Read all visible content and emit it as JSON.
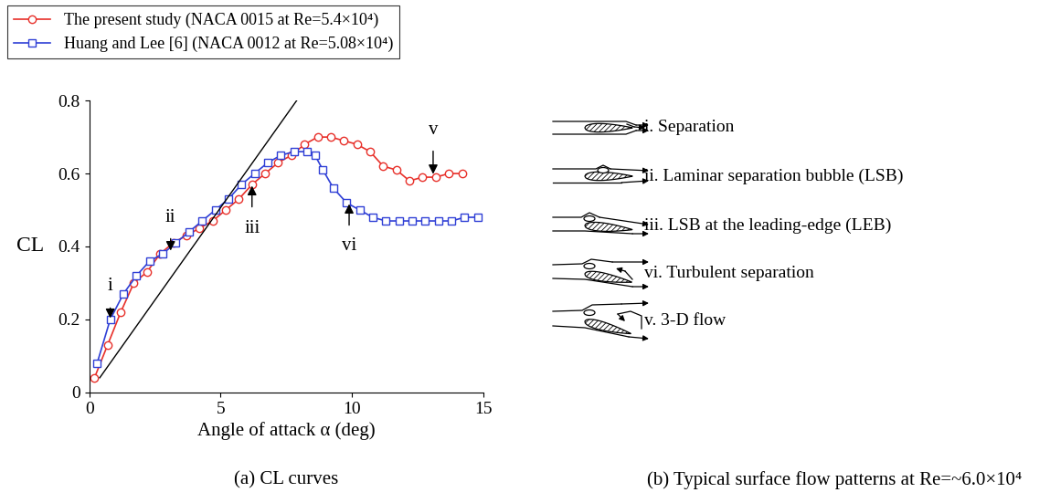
{
  "chart_data": {
    "type": "line",
    "xlabel": "Angle of attack α (deg)",
    "ylabel": "CL",
    "caption": "(a) CL curves",
    "xlim": [
      0,
      15
    ],
    "xticks": [
      0,
      5,
      10,
      15
    ],
    "ylim": [
      0,
      0.8
    ],
    "yticks": [
      0,
      0.2,
      0.4,
      0.6,
      0.8
    ],
    "grid": false,
    "legend": "upper left",
    "series": [
      {
        "name": "The present study (NACA 0015 at Re=5.4×10⁴)",
        "color": "#e8302a",
        "marker": "circle",
        "line_style": "solid",
        "x": [
          0.2,
          0.7,
          1.2,
          1.7,
          2.2,
          2.7,
          3.2,
          3.7,
          4.2,
          4.7,
          5.2,
          5.7,
          6.2,
          6.7,
          7.2,
          7.7,
          8.2,
          8.7,
          9.2,
          9.7,
          10.2,
          10.7,
          11.2,
          11.7,
          12.2,
          12.7,
          13.2,
          13.7,
          14.2
        ],
        "values": [
          0.04,
          0.13,
          0.22,
          0.3,
          0.33,
          0.38,
          0.41,
          0.43,
          0.45,
          0.47,
          0.5,
          0.53,
          0.57,
          0.6,
          0.63,
          0.65,
          0.68,
          0.7,
          0.7,
          0.69,
          0.68,
          0.66,
          0.62,
          0.61,
          0.58,
          0.59,
          0.59,
          0.6,
          0.6
        ]
      },
      {
        "name": "Huang and Lee [6] (NACA 0012 at Re=5.08×10⁴)",
        "color": "#2f3fd6",
        "marker": "square",
        "line_style": "solid",
        "x": [
          0.3,
          0.8,
          1.3,
          1.8,
          2.3,
          2.8,
          3.3,
          3.8,
          4.3,
          4.8,
          5.3,
          5.8,
          6.3,
          6.8,
          7.3,
          7.8,
          8.3,
          8.6,
          8.9,
          9.3,
          9.8,
          10.3,
          10.8,
          11.3,
          11.8,
          12.3,
          12.8,
          13.3,
          13.8,
          14.3,
          14.8
        ],
        "values": [
          0.08,
          0.2,
          0.27,
          0.32,
          0.36,
          0.38,
          0.41,
          0.44,
          0.47,
          0.5,
          0.53,
          0.57,
          0.6,
          0.63,
          0.65,
          0.66,
          0.66,
          0.65,
          0.61,
          0.56,
          0.52,
          0.5,
          0.48,
          0.47,
          0.47,
          0.47,
          0.47,
          0.47,
          0.47,
          0.48,
          0.48
        ]
      }
    ],
    "reference_line": {
      "color": "#000000",
      "x": [
        0.4,
        7.9
      ],
      "values": [
        0.04,
        0.8
      ]
    },
    "annotations": [
      {
        "text": "i",
        "x": 0.8,
        "y": 0.2,
        "text_y": 0.29
      },
      {
        "text": "ii",
        "x": 3.1,
        "y": 0.385,
        "text_y": 0.48
      },
      {
        "text": "iii",
        "x": 6.2,
        "y": 0.57,
        "text_y": 0.45
      },
      {
        "text": "vi",
        "x": 9.9,
        "y": 0.52,
        "text_y": 0.4
      },
      {
        "text": "v",
        "x": 13.1,
        "y": 0.595,
        "text_y": 0.72
      }
    ]
  },
  "flow_patterns": {
    "caption": "(b) Typical surface flow patterns at Re=~6.0×10⁴",
    "items": [
      "i. Separation",
      "ii. Laminar separation bubble (LSB)",
      "iii. LSB at the leading-edge (LEB)",
      "vi. Turbulent separation",
      "v. 3-D flow"
    ]
  }
}
